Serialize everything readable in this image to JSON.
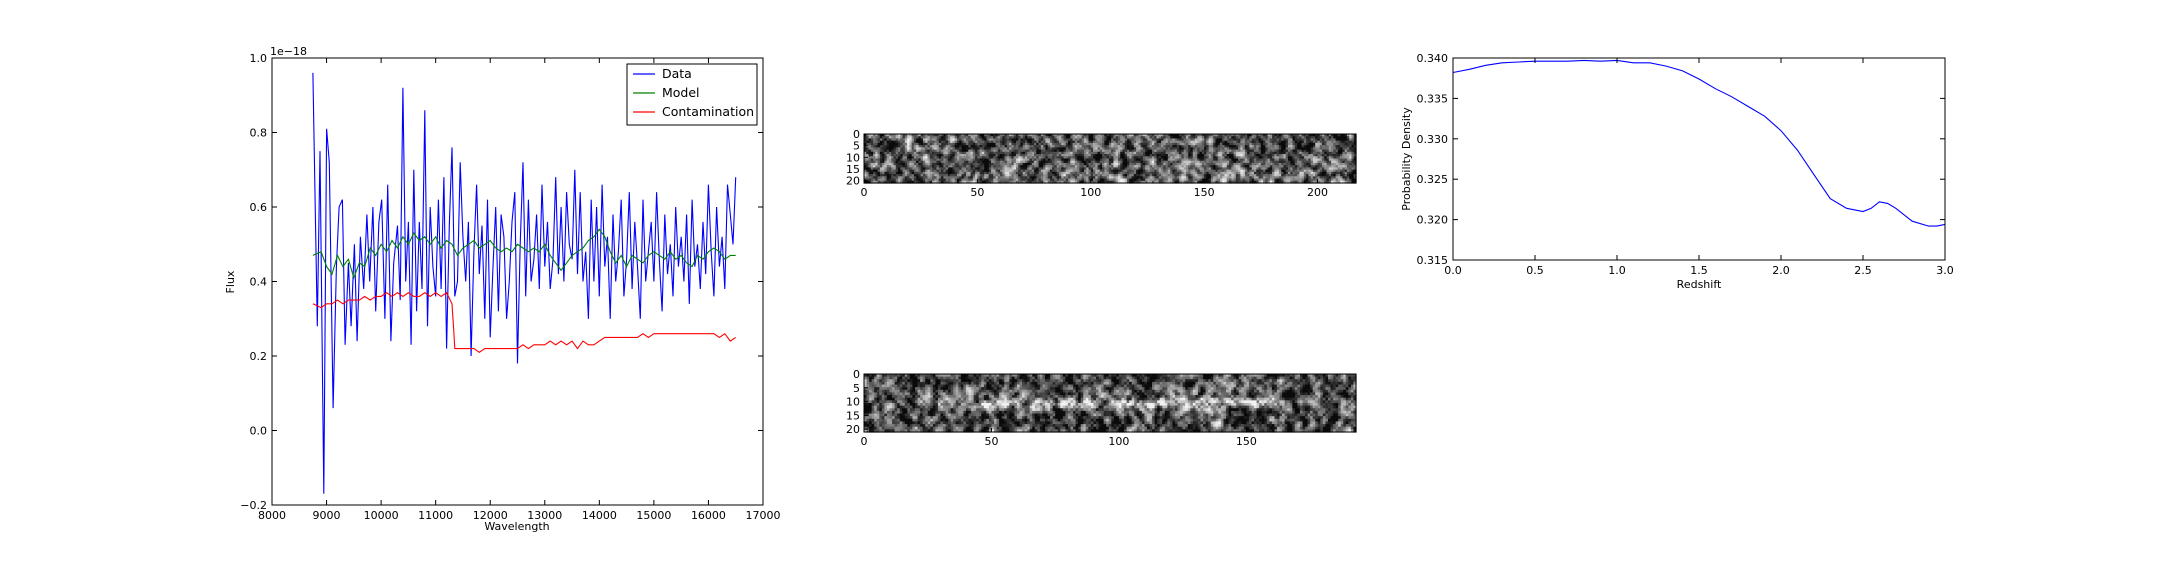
{
  "chart_data": [
    {
      "type": "line",
      "xlabel": "Wavelength",
      "ylabel": "Flux",
      "offset_text": "1e−18",
      "xlim": [
        8000,
        17000
      ],
      "ylim": [
        -0.2,
        1.0
      ],
      "xticks": [
        8000,
        9000,
        10000,
        11000,
        12000,
        13000,
        14000,
        15000,
        16000,
        17000
      ],
      "yticks": [
        -0.2,
        0.0,
        0.2,
        0.4,
        0.6,
        0.8,
        1.0
      ],
      "ytick_labels": [
        "−0.2",
        "0.0",
        "0.2",
        "0.4",
        "0.6",
        "0.8",
        "1.0"
      ],
      "legend_position": "top-right",
      "series": [
        {
          "name": "Data",
          "color": "#0000ff",
          "x": [
            8750,
            8830,
            8880,
            8950,
            9000,
            9050,
            9120,
            9180,
            9230,
            9290,
            9340,
            9400,
            9450,
            9510,
            9560,
            9620,
            9680,
            9740,
            9790,
            9850,
            9900,
            9960,
            10010,
            10070,
            10120,
            10180,
            10230,
            10300,
            10350,
            10400,
            10450,
            10500,
            10550,
            10600,
            10650,
            10700,
            10750,
            10800,
            10850,
            10900,
            10950,
            11000,
            11050,
            11100,
            11150,
            11200,
            11250,
            11300,
            11350,
            11400,
            11450,
            11500,
            11550,
            11600,
            11650,
            11700,
            11750,
            11800,
            11850,
            11900,
            11950,
            12000,
            12050,
            12100,
            12150,
            12200,
            12250,
            12300,
            12350,
            12400,
            12450,
            12500,
            12550,
            12600,
            12650,
            12700,
            12750,
            12800,
            12850,
            12900,
            12950,
            13000,
            13050,
            13100,
            13150,
            13200,
            13250,
            13300,
            13350,
            13400,
            13450,
            13500,
            13550,
            13600,
            13650,
            13700,
            13750,
            13800,
            13850,
            13900,
            13950,
            14000,
            14050,
            14100,
            14150,
            14200,
            14250,
            14300,
            14350,
            14400,
            14450,
            14500,
            14550,
            14600,
            14650,
            14700,
            14750,
            14800,
            14850,
            14900,
            14950,
            15000,
            15050,
            15100,
            15150,
            15200,
            15250,
            15300,
            15350,
            15400,
            15450,
            15500,
            15550,
            15600,
            15650,
            15700,
            15750,
            15800,
            15850,
            15900,
            15950,
            16000,
            16050,
            16100,
            16150,
            16200,
            16250,
            16300,
            16350,
            16400,
            16450,
            16500
          ],
          "y": [
            0.96,
            0.28,
            0.75,
            -0.17,
            0.81,
            0.72,
            0.06,
            0.44,
            0.6,
            0.62,
            0.23,
            0.45,
            0.28,
            0.5,
            0.24,
            0.52,
            0.38,
            0.58,
            0.4,
            0.6,
            0.32,
            0.56,
            0.62,
            0.3,
            0.66,
            0.24,
            0.45,
            0.55,
            0.35,
            0.92,
            0.4,
            0.56,
            0.23,
            0.7,
            0.32,
            0.56,
            0.38,
            0.86,
            0.28,
            0.6,
            0.44,
            0.36,
            0.62,
            0.38,
            0.68,
            0.22,
            0.55,
            0.76,
            0.36,
            0.4,
            0.72,
            0.52,
            0.4,
            0.56,
            0.2,
            0.48,
            0.66,
            0.42,
            0.55,
            0.3,
            0.62,
            0.25,
            0.44,
            0.6,
            0.32,
            0.58,
            0.52,
            0.3,
            0.4,
            0.56,
            0.64,
            0.18,
            0.5,
            0.72,
            0.36,
            0.62,
            0.4,
            0.46,
            0.58,
            0.38,
            0.66,
            0.44,
            0.56,
            0.38,
            0.46,
            0.68,
            0.42,
            0.6,
            0.4,
            0.64,
            0.5,
            0.46,
            0.7,
            0.42,
            0.64,
            0.4,
            0.48,
            0.3,
            0.62,
            0.4,
            0.6,
            0.36,
            0.66,
            0.44,
            0.52,
            0.3,
            0.58,
            0.4,
            0.48,
            0.62,
            0.36,
            0.46,
            0.64,
            0.38,
            0.56,
            0.44,
            0.3,
            0.62,
            0.4,
            0.48,
            0.56,
            0.4,
            0.64,
            0.46,
            0.32,
            0.58,
            0.42,
            0.5,
            0.36,
            0.6,
            0.44,
            0.52,
            0.4,
            0.58,
            0.34,
            0.62,
            0.44,
            0.5,
            0.38,
            0.56,
            0.42,
            0.66,
            0.48,
            0.36,
            0.6,
            0.44,
            0.52,
            0.38,
            0.66,
            0.58,
            0.5,
            0.68
          ]
        },
        {
          "name": "Model",
          "color": "#008000",
          "x": [
            8750,
            8900,
            9000,
            9100,
            9200,
            9300,
            9400,
            9500,
            9600,
            9700,
            9800,
            9900,
            10000,
            10100,
            10200,
            10300,
            10400,
            10500,
            10600,
            10700,
            10800,
            10900,
            11000,
            11100,
            11200,
            11300,
            11400,
            11500,
            11600,
            11700,
            11800,
            11900,
            12000,
            12100,
            12200,
            12300,
            12400,
            12500,
            12600,
            12700,
            12800,
            12900,
            13000,
            13100,
            13200,
            13300,
            13400,
            13500,
            13600,
            13700,
            13800,
            13900,
            14000,
            14100,
            14200,
            14300,
            14400,
            14500,
            14600,
            14700,
            14800,
            14900,
            15000,
            15100,
            15200,
            15300,
            15400,
            15500,
            15600,
            15700,
            15800,
            15900,
            16000,
            16100,
            16200,
            16300,
            16400,
            16500
          ],
          "y": [
            0.47,
            0.48,
            0.44,
            0.42,
            0.47,
            0.44,
            0.46,
            0.41,
            0.45,
            0.44,
            0.49,
            0.47,
            0.5,
            0.48,
            0.51,
            0.49,
            0.52,
            0.5,
            0.53,
            0.51,
            0.52,
            0.5,
            0.52,
            0.49,
            0.51,
            0.5,
            0.47,
            0.49,
            0.5,
            0.51,
            0.49,
            0.5,
            0.51,
            0.49,
            0.48,
            0.49,
            0.48,
            0.5,
            0.49,
            0.48,
            0.49,
            0.48,
            0.5,
            0.47,
            0.45,
            0.43,
            0.45,
            0.47,
            0.48,
            0.49,
            0.51,
            0.52,
            0.54,
            0.52,
            0.48,
            0.45,
            0.47,
            0.44,
            0.47,
            0.46,
            0.45,
            0.47,
            0.48,
            0.47,
            0.46,
            0.48,
            0.46,
            0.47,
            0.45,
            0.44,
            0.47,
            0.46,
            0.48,
            0.49,
            0.48,
            0.46,
            0.47,
            0.47
          ]
        },
        {
          "name": "Contamination",
          "color": "#ff0000",
          "x": [
            8750,
            8900,
            9000,
            9100,
            9200,
            9300,
            9400,
            9500,
            9600,
            9700,
            9800,
            9900,
            10000,
            10100,
            10200,
            10300,
            10400,
            10500,
            10600,
            10700,
            10800,
            10900,
            11000,
            11100,
            11200,
            11300,
            11330,
            11350,
            11400,
            11500,
            11600,
            11700,
            11800,
            11900,
            12000,
            12100,
            12200,
            12300,
            12400,
            12500,
            12600,
            12700,
            12800,
            12900,
            13000,
            13100,
            13200,
            13300,
            13400,
            13500,
            13600,
            13700,
            13800,
            13900,
            14000,
            14100,
            14200,
            14300,
            14400,
            14500,
            14600,
            14700,
            14800,
            14900,
            15000,
            15100,
            15200,
            15300,
            15400,
            15500,
            15600,
            15700,
            15800,
            15900,
            16000,
            16100,
            16200,
            16300,
            16400,
            16500
          ],
          "y": [
            0.34,
            0.33,
            0.34,
            0.34,
            0.35,
            0.34,
            0.35,
            0.35,
            0.35,
            0.36,
            0.35,
            0.36,
            0.36,
            0.37,
            0.36,
            0.37,
            0.36,
            0.37,
            0.36,
            0.36,
            0.37,
            0.36,
            0.37,
            0.36,
            0.37,
            0.34,
            0.27,
            0.22,
            0.22,
            0.22,
            0.22,
            0.22,
            0.21,
            0.22,
            0.22,
            0.22,
            0.22,
            0.22,
            0.22,
            0.22,
            0.23,
            0.22,
            0.23,
            0.23,
            0.23,
            0.24,
            0.23,
            0.24,
            0.23,
            0.24,
            0.22,
            0.24,
            0.23,
            0.23,
            0.24,
            0.25,
            0.25,
            0.25,
            0.25,
            0.25,
            0.25,
            0.25,
            0.26,
            0.25,
            0.26,
            0.26,
            0.26,
            0.26,
            0.26,
            0.26,
            0.26,
            0.26,
            0.26,
            0.26,
            0.26,
            0.26,
            0.25,
            0.26,
            0.24,
            0.25
          ]
        }
      ]
    },
    {
      "type": "heatmap",
      "xlim": [
        0,
        217
      ],
      "ylim": [
        21,
        0
      ],
      "xticks": [
        0,
        50,
        100,
        150,
        200
      ],
      "yticks": [
        0,
        5,
        10,
        15,
        20
      ],
      "cols": 217,
      "rows": 22,
      "pattern": "noise",
      "seed": 7
    },
    {
      "type": "heatmap",
      "xlim": [
        0,
        193
      ],
      "ylim": [
        21,
        0
      ],
      "xticks": [
        0,
        50,
        100,
        150
      ],
      "yticks": [
        0,
        5,
        10,
        15,
        20
      ],
      "cols": 193,
      "rows": 22,
      "pattern": "trace",
      "seed": 19
    },
    {
      "type": "line",
      "xlabel": "Redshift",
      "ylabel": "Probability Density",
      "xlim": [
        0.0,
        3.0
      ],
      "ylim": [
        0.315,
        0.34
      ],
      "xticks": [
        0.0,
        0.5,
        1.0,
        1.5,
        2.0,
        2.5,
        3.0
      ],
      "yticks": [
        0.315,
        0.32,
        0.325,
        0.33,
        0.335,
        0.34
      ],
      "series": [
        {
          "color": "#0000ff",
          "x": [
            0.0,
            0.1,
            0.2,
            0.3,
            0.4,
            0.5,
            0.6,
            0.7,
            0.8,
            0.9,
            1.0,
            1.1,
            1.2,
            1.3,
            1.4,
            1.5,
            1.6,
            1.7,
            1.8,
            1.9,
            2.0,
            2.1,
            2.2,
            2.3,
            2.4,
            2.5,
            2.55,
            2.6,
            2.65,
            2.7,
            2.8,
            2.9,
            2.95,
            3.0
          ],
          "y": [
            0.3382,
            0.3386,
            0.3391,
            0.3394,
            0.3395,
            0.3396,
            0.3396,
            0.3396,
            0.3397,
            0.3396,
            0.3397,
            0.3394,
            0.3394,
            0.339,
            0.3384,
            0.3374,
            0.3362,
            0.3352,
            0.334,
            0.3328,
            0.331,
            0.3286,
            0.3256,
            0.3226,
            0.3214,
            0.321,
            0.3214,
            0.3222,
            0.322,
            0.3214,
            0.3198,
            0.3192,
            0.3192,
            0.3194
          ]
        }
      ]
    }
  ]
}
